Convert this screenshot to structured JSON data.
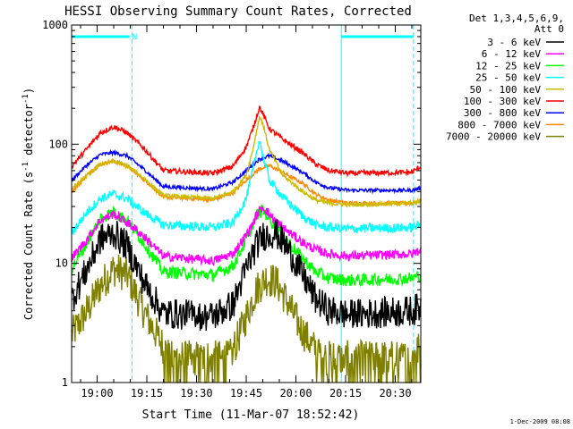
{
  "chart_data": {
    "type": "line",
    "title": "HESSI Observing Summary Count Rates, Corrected",
    "xlabel": "Start Time (11-Mar-07 18:52:42)",
    "ylabel": "Corrected Count Rate (s^-1 detector^-1)",
    "ylabel_parts": {
      "base": "Corrected Count Rate (s",
      "sup1": "-1",
      "mid": " detector",
      "sup2": "-1",
      "end": ")"
    },
    "y_scale": "log",
    "ylim": [
      1,
      1000
    ],
    "xlim_minutes": [
      -7.7,
      97.7
    ],
    "y_ticks": [
      {
        "value": 1,
        "label": "1"
      },
      {
        "value": 10,
        "label": "10"
      },
      {
        "value": 100,
        "label": "100"
      },
      {
        "value": 1000,
        "label": "1000"
      }
    ],
    "x_ticks": [
      {
        "minute": 0,
        "label": "19:00"
      },
      {
        "minute": 15,
        "label": "19:15"
      },
      {
        "minute": 30,
        "label": "19:30"
      },
      {
        "minute": 45,
        "label": "19:45"
      },
      {
        "minute": 60,
        "label": "20:00"
      },
      {
        "minute": 75,
        "label": "20:15"
      },
      {
        "minute": 90,
        "label": "20:30"
      }
    ],
    "x_minor_step_minutes": 5,
    "legend": {
      "placement": "right",
      "header": [
        "Det 1,3,4,5,6,9,",
        "Att 0"
      ]
    },
    "annotation": {
      "text": "N",
      "color": "#00ffff"
    },
    "night_markers_minutes": [
      -7.7,
      10.5,
      73.7,
      95.5
    ],
    "night_bars_minutes": [
      [
        -7.7,
        9.8
      ],
      [
        73.7,
        95.5
      ]
    ],
    "footer_date": "1-Dec-2009 08:08",
    "series": [
      {
        "name": "3 - 6 keV",
        "color": "#000000",
        "noise": 0.3,
        "lowcut": 2.8,
        "base": 3.2,
        "points": [
          [
            -7.7,
            5
          ],
          [
            -3,
            9
          ],
          [
            1,
            16
          ],
          [
            5,
            18
          ],
          [
            9,
            14
          ],
          [
            14,
            7
          ],
          [
            20,
            3.8
          ],
          [
            35,
            3.6
          ],
          [
            41,
            4.5
          ],
          [
            45,
            9
          ],
          [
            48,
            14
          ],
          [
            50,
            17
          ],
          [
            54,
            18
          ],
          [
            57,
            14
          ],
          [
            62,
            8
          ],
          [
            66,
            5
          ],
          [
            70,
            4
          ],
          [
            76,
            3.7
          ],
          [
            95,
            4
          ],
          [
            97.7,
            4.3
          ]
        ]
      },
      {
        "name": "6 - 12 keV",
        "color": "#ff00ff",
        "noise": 0.09,
        "lowcut": 0,
        "base": 0,
        "points": [
          [
            -7.7,
            11
          ],
          [
            -3,
            16
          ],
          [
            1,
            23
          ],
          [
            5,
            26
          ],
          [
            9,
            22
          ],
          [
            14,
            17
          ],
          [
            20,
            11.5
          ],
          [
            35,
            10.5
          ],
          [
            41,
            12
          ],
          [
            46,
            19
          ],
          [
            48,
            25
          ],
          [
            50,
            30
          ],
          [
            53,
            24
          ],
          [
            57,
            19
          ],
          [
            62,
            15
          ],
          [
            66,
            13
          ],
          [
            70,
            12
          ],
          [
            76,
            11.5
          ],
          [
            95,
            12
          ],
          [
            97.7,
            13
          ]
        ]
      },
      {
        "name": "12 - 25 keV",
        "color": "#00ff00",
        "noise": 0.12,
        "lowcut": 0,
        "base": 0,
        "points": [
          [
            -7.7,
            9
          ],
          [
            -3,
            15
          ],
          [
            1,
            24
          ],
          [
            5,
            27
          ],
          [
            9,
            23
          ],
          [
            14,
            15
          ],
          [
            20,
            8.5
          ],
          [
            35,
            8
          ],
          [
            41,
            9.5
          ],
          [
            46,
            18
          ],
          [
            48,
            25
          ],
          [
            50,
            28
          ],
          [
            53,
            22
          ],
          [
            57,
            16
          ],
          [
            62,
            11
          ],
          [
            66,
            8.5
          ],
          [
            70,
            7.5
          ],
          [
            76,
            7.2
          ],
          [
            95,
            7.5
          ],
          [
            97.7,
            8
          ]
        ]
      },
      {
        "name": "25 - 50 keV",
        "color": "#00ffff",
        "noise": 0.09,
        "lowcut": 0,
        "base": 0,
        "points": [
          [
            -7.7,
            18
          ],
          [
            -3,
            27
          ],
          [
            1,
            35
          ],
          [
            5,
            38
          ],
          [
            9,
            35
          ],
          [
            14,
            27
          ],
          [
            20,
            21
          ],
          [
            35,
            20
          ],
          [
            41,
            22
          ],
          [
            45,
            35
          ],
          [
            47,
            60
          ],
          [
            49,
            110
          ],
          [
            50,
            80
          ],
          [
            52,
            50
          ],
          [
            56,
            36
          ],
          [
            62,
            25
          ],
          [
            66,
            21
          ],
          [
            70,
            20
          ],
          [
            76,
            19.5
          ],
          [
            95,
            20
          ],
          [
            97.7,
            21
          ]
        ]
      },
      {
        "name": "50 - 100 keV",
        "color": "#ccbb00",
        "noise": 0.04,
        "lowcut": 0,
        "base": 0,
        "points": [
          [
            -7.7,
            42
          ],
          [
            -3,
            55
          ],
          [
            1,
            68
          ],
          [
            5,
            72
          ],
          [
            9,
            66
          ],
          [
            14,
            52
          ],
          [
            20,
            37
          ],
          [
            35,
            35
          ],
          [
            41,
            40
          ],
          [
            45,
            55
          ],
          [
            47,
            90
          ],
          [
            49,
            170
          ],
          [
            50,
            150
          ],
          [
            52,
            90
          ],
          [
            56,
            55
          ],
          [
            62,
            40
          ],
          [
            66,
            34
          ],
          [
            70,
            32
          ],
          [
            76,
            31
          ],
          [
            95,
            32
          ],
          [
            97.7,
            33
          ]
        ]
      },
      {
        "name": "100 - 300 keV",
        "color": "#ff0000",
        "noise": 0.05,
        "lowcut": 0,
        "base": 0,
        "points": [
          [
            -7.7,
            65
          ],
          [
            -3,
            92
          ],
          [
            1,
            125
          ],
          [
            5,
            140
          ],
          [
            9,
            125
          ],
          [
            14,
            93
          ],
          [
            20,
            60
          ],
          [
            35,
            57
          ],
          [
            41,
            65
          ],
          [
            45,
            95
          ],
          [
            47,
            135
          ],
          [
            49,
            205
          ],
          [
            50,
            180
          ],
          [
            52,
            135
          ],
          [
            56,
            110
          ],
          [
            62,
            85
          ],
          [
            66,
            68
          ],
          [
            70,
            60
          ],
          [
            76,
            57
          ],
          [
            95,
            58
          ],
          [
            97.7,
            65
          ]
        ]
      },
      {
        "name": "300 - 800 keV",
        "color": "#0000ff",
        "noise": 0.035,
        "lowcut": 0,
        "base": 0,
        "points": [
          [
            -7.7,
            50
          ],
          [
            -3,
            67
          ],
          [
            1,
            82
          ],
          [
            5,
            85
          ],
          [
            9,
            80
          ],
          [
            14,
            62
          ],
          [
            20,
            44
          ],
          [
            35,
            42
          ],
          [
            41,
            48
          ],
          [
            45,
            60
          ],
          [
            49,
            75
          ],
          [
            52,
            80
          ],
          [
            56,
            72
          ],
          [
            62,
            58
          ],
          [
            66,
            48
          ],
          [
            70,
            43
          ],
          [
            76,
            41
          ],
          [
            95,
            41
          ],
          [
            97.7,
            43
          ]
        ]
      },
      {
        "name": "800 - 7000 keV",
        "color": "#ff8800",
        "noise": 0.035,
        "lowcut": 0,
        "base": 0,
        "points": [
          [
            -7.7,
            40
          ],
          [
            -3,
            55
          ],
          [
            1,
            68
          ],
          [
            5,
            72
          ],
          [
            9,
            66
          ],
          [
            14,
            51
          ],
          [
            20,
            36
          ],
          [
            35,
            34
          ],
          [
            41,
            39
          ],
          [
            45,
            50
          ],
          [
            49,
            62
          ],
          [
            52,
            66
          ],
          [
            56,
            58
          ],
          [
            62,
            47
          ],
          [
            66,
            38
          ],
          [
            70,
            34
          ],
          [
            76,
            32
          ],
          [
            95,
            32
          ],
          [
            97.7,
            34
          ]
        ]
      },
      {
        "name": "7000 - 20000 keV",
        "color": "#808000",
        "noise": 0.35,
        "lowcut": 1.6,
        "base": 1.0,
        "points": [
          [
            -7.7,
            2.5
          ],
          [
            -3,
            4
          ],
          [
            1,
            6.5
          ],
          [
            5,
            9
          ],
          [
            9,
            8
          ],
          [
            14,
            4
          ],
          [
            18,
            2.5
          ],
          [
            22,
            1.6
          ],
          [
            40,
            1.6
          ],
          [
            44,
            3
          ],
          [
            48,
            6
          ],
          [
            51,
            7.5
          ],
          [
            54,
            7
          ],
          [
            57,
            5
          ],
          [
            61,
            3
          ],
          [
            65,
            2
          ],
          [
            70,
            1.6
          ],
          [
            95,
            1.6
          ],
          [
            97.7,
            2
          ]
        ]
      }
    ]
  }
}
